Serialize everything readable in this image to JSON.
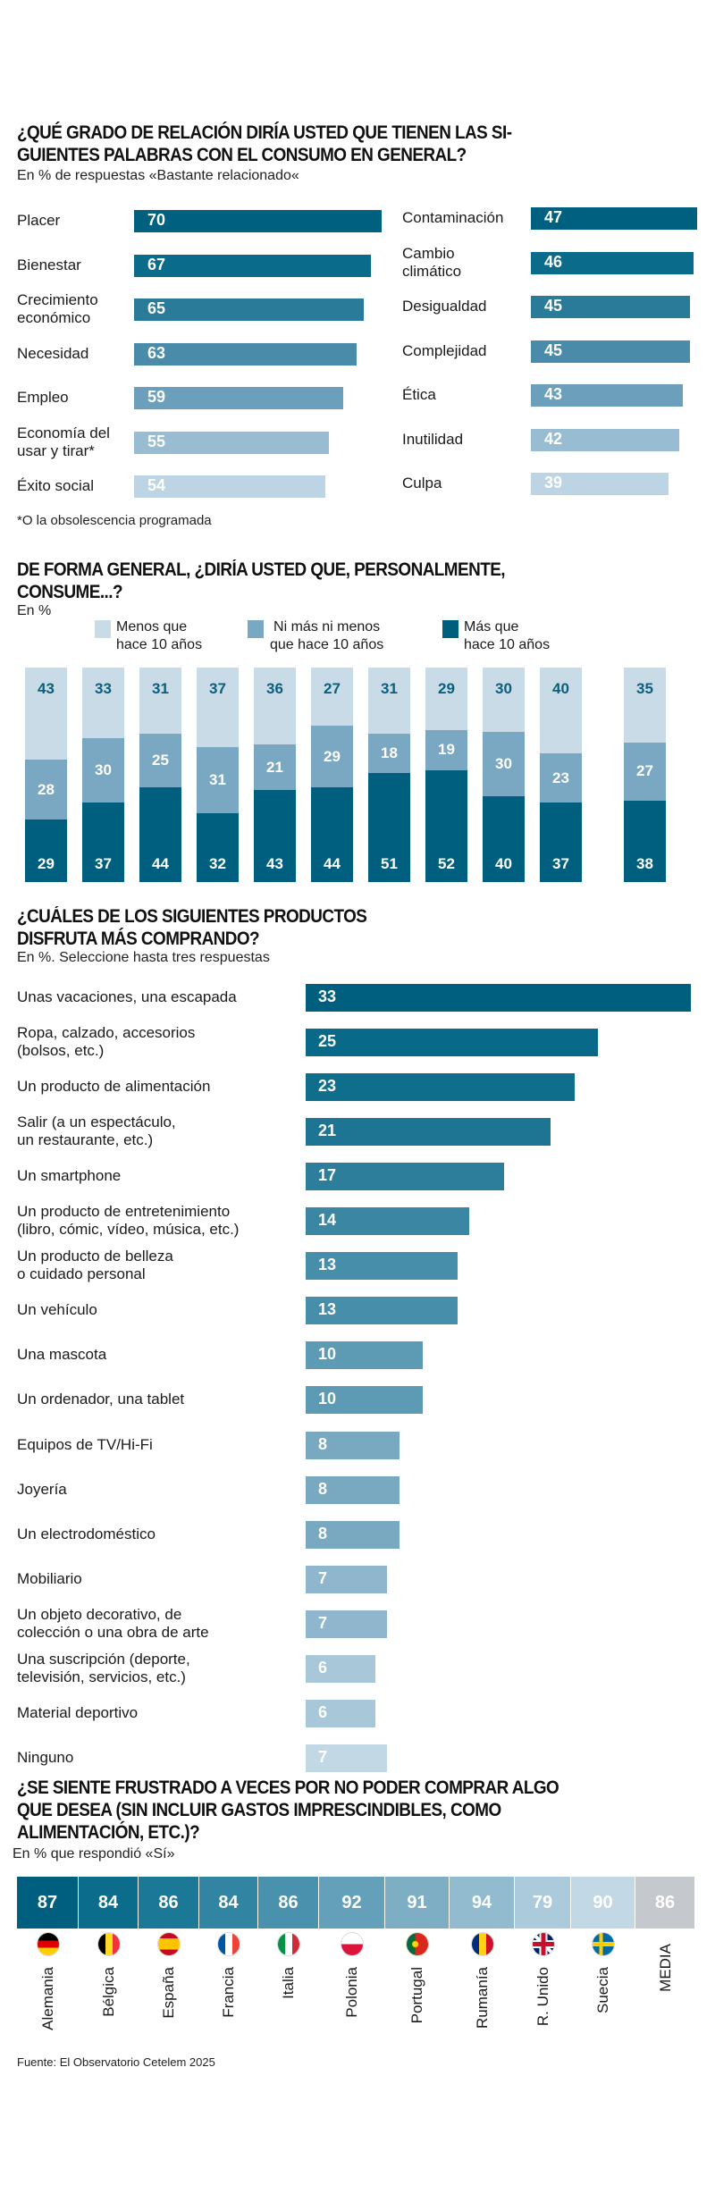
{
  "chart_data": [
    {
      "type": "bar",
      "orientation": "horizontal",
      "title_lines": [
        "¿QUÉ GRADO DE RELACIÓN DIRÍA USTED QUE TIENEN LAS SI-",
        "GUIENTES PALABRAS CON EL CONSUMO EN GENERAL?"
      ],
      "subtitle": "En % de respuestas «Bastante relacionado«",
      "columns": [
        {
          "categories": [
            "Placer",
            "Bienestar",
            "Crecimiento\neconómico",
            "Necesidad",
            "Empleo",
            "Economía del\nusar y tirar*",
            "Éxito social"
          ],
          "values": [
            70,
            67,
            65,
            63,
            59,
            55,
            54
          ],
          "colors": [
            "#00607f",
            "#0b6b8a",
            "#2a7b99",
            "#4a8ba9",
            "#6b9fbb",
            "#98bcd1",
            "#bcd4e3"
          ]
        },
        {
          "categories": [
            "Contaminación",
            "Cambio\nclimático",
            "Desigualdad",
            "Complejidad",
            "Ética",
            "Inutilidad",
            "Culpa"
          ],
          "values": [
            47,
            46,
            45,
            45,
            43,
            42,
            39
          ],
          "colors": [
            "#00607f",
            "#0b6b8a",
            "#2a7b99",
            "#4a8ba9",
            "#6b9fbb",
            "#98bcd1",
            "#bcd4e3"
          ]
        }
      ],
      "footnote": "*O la obsolescencia programada"
    },
    {
      "type": "bar",
      "stacked": true,
      "title_lines": [
        "DE FORMA GENERAL, ¿DIRÍA USTED QUE, PERSONALMENTE,",
        "CONSUME...?"
      ],
      "subtitle": "En %",
      "legend": "top",
      "series": [
        {
          "name": "Más que\nhace 10 años",
          "color": "#005f7f",
          "values": [
            29,
            37,
            44,
            32,
            43,
            44,
            51,
            52,
            40,
            37,
            38
          ]
        },
        {
          "name": "Ni más ni menos\nque hace 10 años",
          "color": "#7aa8c2",
          "values": [
            28,
            30,
            25,
            31,
            21,
            29,
            18,
            19,
            30,
            23,
            27
          ]
        },
        {
          "name": "Menos que\nhace 10 años",
          "color": "#c8dbe7",
          "values": [
            43,
            33,
            31,
            37,
            36,
            27,
            31,
            29,
            30,
            40,
            35
          ]
        }
      ],
      "legend_order": [
        2,
        1,
        0
      ]
    },
    {
      "type": "bar",
      "orientation": "horizontal",
      "title_lines": [
        "¿CUÁLES DE LOS SIGUIENTES PRODUCTOS",
        "DISFRUTA MÁS COMPRANDO?"
      ],
      "subtitle": "En %. Seleccione hasta tres respuestas",
      "categories": [
        "Unas vacaciones, una escapada",
        "Ropa, calzado, accesorios\n(bolsos, etc.)",
        "Un producto de alimentación",
        "Salir (a un espectáculo,\nun restaurante, etc.)",
        "Un smartphone",
        "Un producto de entretenimiento\n (libro, cómic, vídeo, música, etc.)",
        "Un producto de belleza\no cuidado personal",
        "Un vehículo",
        "Una mascota",
        "Un ordenador, una tablet",
        "Equipos de TV/Hi-Fi",
        "Joyería",
        "Un electrodoméstico",
        "Mobiliario",
        "Un objeto decorativo, de\ncolección o una obra de arte",
        "Una suscripción (deporte,\ntelevisión, servicios, etc.)",
        "Material deportivo",
        "Ninguno"
      ],
      "values": [
        33,
        25,
        23,
        21,
        17,
        14,
        13,
        13,
        10,
        10,
        8,
        8,
        8,
        7,
        7,
        6,
        6,
        7
      ],
      "colors": [
        "#005f7f",
        "#086989",
        "#106e8d",
        "#1d7593",
        "#2c7e9b",
        "#3a86a3",
        "#478eaa",
        "#478eaa",
        "#5d9bb5",
        "#5d9bb5",
        "#79a9c1",
        "#79a9c1",
        "#79a9c1",
        "#8fb6cc",
        "#8fb6cc",
        "#a8c7d9",
        "#a8c7d9",
        "#c3d8e5"
      ]
    },
    {
      "type": "heatmap",
      "title_lines": [
        "¿SE SIENTE FRUSTRADO A VECES POR NO PODER COMPRAR ALGO",
        "QUE DESEA  (SIN INCLUIR GASTOS IMPRESCINDIBLES, COMO",
        "ALIMENTACIÓN, ETC.)?"
      ],
      "subtitle": "En % que respondió «Sí»",
      "categories": [
        "Alemania",
        "Bélgica",
        "España",
        "Francia",
        "Italia",
        "Polonia",
        "Portugal",
        "Rumanía",
        "R. Unido",
        "Suecia",
        "MEDIA"
      ],
      "values": [
        87,
        84,
        86,
        84,
        86,
        92,
        91,
        94,
        79,
        90,
        86
      ],
      "colors": [
        "#005f7f",
        "#0c6c8c",
        "#1c7897",
        "#3285a2",
        "#4a91ad",
        "#64a0b9",
        "#7daec4",
        "#93bbd0",
        "#abcadb",
        "#c2d8e5",
        "#c5c8cc"
      ],
      "flags": [
        "germany-flag",
        "belgium-flag",
        "spain-flag",
        "france-flag",
        "italy-flag",
        "poland-flag",
        "portugal-flag",
        "romania-flag",
        "uk-flag",
        "sweden-flag",
        ""
      ]
    }
  ],
  "stacked_categories_note": "",
  "source": "Fuente: El Observatorio Cetelem 2025"
}
